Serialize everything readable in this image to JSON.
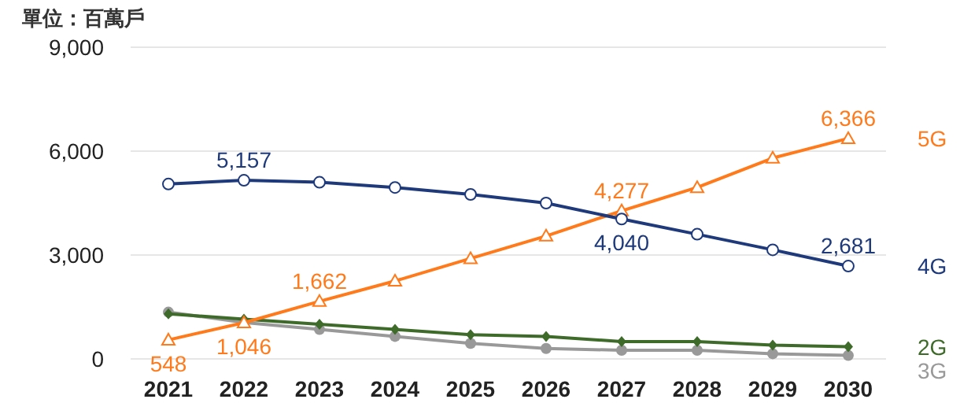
{
  "chart_data": {
    "type": "line",
    "ylabel": "單位：百萬戶",
    "categories": [
      "2021",
      "2022",
      "2023",
      "2024",
      "2025",
      "2026",
      "2027",
      "2028",
      "2029",
      "2030"
    ],
    "ylim": [
      0,
      9000
    ],
    "yticks": [
      {
        "value": 0,
        "label": "0"
      },
      {
        "value": 3000,
        "label": "3,000"
      },
      {
        "value": 6000,
        "label": "6,000"
      },
      {
        "value": 9000,
        "label": "9,000"
      }
    ],
    "grid": "y",
    "legend": false,
    "series": [
      {
        "name": "4G",
        "color": "#1f3a7a",
        "marker": "circle",
        "values": [
          5050,
          5157,
          5100,
          4950,
          4750,
          4500,
          4040,
          3600,
          3150,
          2681
        ],
        "value_labels": [
          null,
          "5,157",
          null,
          null,
          null,
          null,
          "4,040",
          null,
          null,
          "2,681"
        ]
      },
      {
        "name": "5G",
        "color": "#ff7a1a",
        "marker": "triangle",
        "values": [
          548,
          1046,
          1662,
          2250,
          2900,
          3550,
          4277,
          4950,
          5800,
          6366
        ],
        "value_labels": [
          "548",
          "1,046",
          "1,662",
          null,
          null,
          null,
          "4,277",
          null,
          null,
          "6,366"
        ]
      },
      {
        "name": "2G",
        "color": "#3e6b2a",
        "marker": "diamond",
        "values": [
          1300,
          1150,
          1000,
          850,
          700,
          650,
          500,
          500,
          400,
          350
        ]
      },
      {
        "name": "3G",
        "color": "#999999",
        "marker": "circle",
        "values": [
          1350,
          1050,
          850,
          650,
          450,
          300,
          250,
          250,
          150,
          100
        ]
      }
    ]
  }
}
